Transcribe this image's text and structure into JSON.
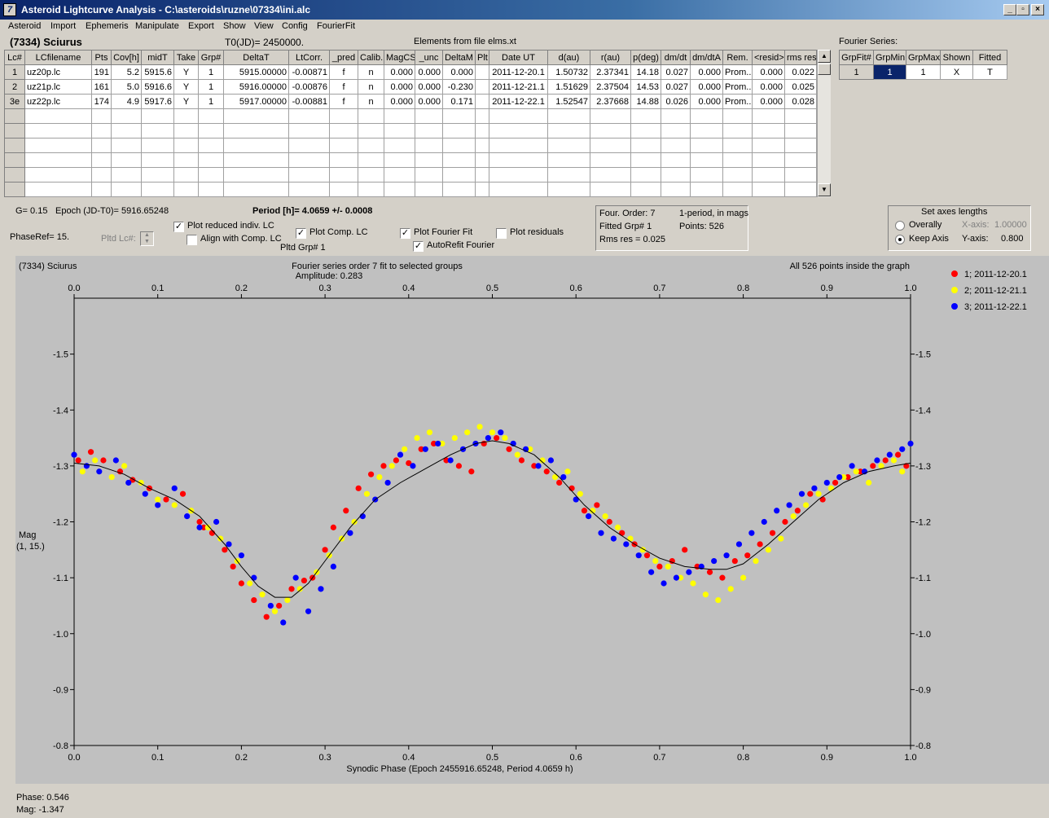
{
  "window": {
    "title": "Asteroid Lightcurve Analysis - C:\\asteroids\\ruzne\\07334\\ini.alc",
    "icon_label": "7",
    "buttons": {
      "minimize": "_",
      "restore": "▫",
      "close": "×"
    }
  },
  "menu": [
    "Asteroid",
    "Import",
    "Ephemeris",
    "Manipulate",
    "Export",
    "Show",
    "View",
    "Config",
    "FourierFit"
  ],
  "header": {
    "asteroid_name": "(7334) Sciurus",
    "t0": "T0(JD)= 2450000.",
    "elements": "Elements from file elms.xt",
    "fourier_series_label": "Fourier Series:"
  },
  "lc_table": {
    "columns": [
      "Lc#",
      "LCfilename",
      "Pts",
      "Cov[h]",
      "midT",
      "Take",
      "Grp#",
      "DeltaT",
      "LtCorr.",
      "_pred",
      "Calib.",
      "MagCS",
      "_unc",
      "DeltaM",
      "Plt",
      "Date UT",
      "d(au)",
      "r(au)",
      "p(deg)",
      "dm/dt",
      "dm/dtA",
      "Rem.",
      "<resid>",
      "rms res"
    ],
    "rows": [
      [
        "1",
        "uz20p.lc",
        "191",
        "5.2",
        "5915.6",
        "Y",
        "1",
        "5915.00000",
        "-0.00871",
        "f",
        "n",
        "0.000",
        "0.000",
        "0.000",
        "",
        "2011-12-20.1",
        "1.50732",
        "2.37341",
        "14.18",
        "0.027",
        "0.000",
        "Prom...",
        "0.000",
        "0.022"
      ],
      [
        "2",
        "uz21p.lc",
        "161",
        "5.0",
        "5916.6",
        "Y",
        "1",
        "5916.00000",
        "-0.00876",
        "f",
        "n",
        "0.000",
        "0.000",
        "-0.230",
        "",
        "2011-12-21.1",
        "1.51629",
        "2.37504",
        "14.53",
        "0.027",
        "0.000",
        "Prom...",
        "0.000",
        "0.025"
      ],
      [
        "3e",
        "uz22p.lc",
        "174",
        "4.9",
        "5917.6",
        "Y",
        "1",
        "5917.00000",
        "-0.00881",
        "f",
        "n",
        "0.000",
        "0.000",
        "0.171",
        "",
        "2011-12-22.1",
        "1.52547",
        "2.37668",
        "14.88",
        "0.026",
        "0.000",
        "Prom...",
        "0.000",
        "0.028"
      ]
    ],
    "empty_rows": 6
  },
  "fourier_table": {
    "columns": [
      "GrpFit#",
      "GrpMin",
      "GrpMax",
      "Shown",
      "Fitted"
    ],
    "row": [
      "1",
      "1",
      "1",
      "X",
      "T"
    ]
  },
  "params": {
    "g": "G= 0.15",
    "epoch": "Epoch (JD-T0)= 5916.65248",
    "period": "Period [h]= 4.0659 +/- 0.0008",
    "phaseref": "PhaseRef= 15.",
    "pltd_lc": "Pltd Lc#:",
    "pltd_grp": "Pltd Grp#  1"
  },
  "checkboxes": {
    "plot_reduced": {
      "label": "Plot reduced indiv. LC",
      "checked": true
    },
    "align_comp": {
      "label": "Align with Comp. LC",
      "checked": false
    },
    "plot_comp": {
      "label": "Plot Comp. LC",
      "checked": true
    },
    "plot_fourier": {
      "label": "Plot Fourier Fit",
      "checked": true
    },
    "plot_residuals": {
      "label": "Plot residuals",
      "checked": false
    },
    "autorefit": {
      "label": "AutoRefit Fourier",
      "checked": true
    }
  },
  "fit_info": {
    "order": "Four. Order:  7",
    "period_mode": "1-period, in mags",
    "fitted_grp": "Fitted Grp# 1",
    "points": "Points: 526",
    "rms": "Rms res     = 0.025"
  },
  "axes_box": {
    "title": "Set axes lengths",
    "overally": "Overally",
    "keep_axis": "Keep Axis",
    "x_axis_label": "X-axis:",
    "x_axis_value": "1.00000",
    "y_axis_label": "Y-axis:",
    "y_axis_value": "0.800",
    "selected": "keep_axis"
  },
  "status": {
    "phase": "Phase:  0.546",
    "mag": "Mag:    -1.347"
  },
  "colors": {
    "series1": "#ff0000",
    "series2": "#ffff00",
    "series3": "#0000ff",
    "plot_bg": "#c0c0c0"
  },
  "chart_data": {
    "type": "scatter",
    "title": "Fourier series order 7 fit to selected groups",
    "subtitle": "Amplitude: 0.283",
    "top_left_label": "(7334) Sciurus",
    "top_right_label": "All 526 points inside the graph",
    "xlabel": "Synodic Phase (Epoch 2455916.65248, Period 4.0659 h)",
    "ylabel": "Mag",
    "ylabel2": "(1, 15.)",
    "xlim": [
      0.0,
      1.0
    ],
    "ylim": [
      -1.6,
      -0.8
    ],
    "y_inverted": true,
    "x_ticks": [
      "0.0",
      "0.1",
      "0.2",
      "0.3",
      "0.4",
      "0.5",
      "0.6",
      "0.7",
      "0.8",
      "0.9",
      "1.0"
    ],
    "y_ticks": [
      "-1.5",
      "-1.4",
      "-1.3",
      "-1.2",
      "-1.1",
      "-1.0",
      "-0.9",
      "-0.8"
    ],
    "legend_position": "top-right",
    "fit_curve": {
      "x": [
        0.0,
        0.03,
        0.06,
        0.09,
        0.12,
        0.15,
        0.18,
        0.2,
        0.22,
        0.24,
        0.26,
        0.28,
        0.3,
        0.33,
        0.36,
        0.39,
        0.42,
        0.45,
        0.48,
        0.5,
        0.52,
        0.55,
        0.58,
        0.61,
        0.64,
        0.67,
        0.7,
        0.73,
        0.76,
        0.78,
        0.8,
        0.83,
        0.86,
        0.89,
        0.92,
        0.95,
        0.98,
        1.0
      ],
      "y": [
        -1.305,
        -1.3,
        -1.285,
        -1.26,
        -1.24,
        -1.21,
        -1.16,
        -1.12,
        -1.085,
        -1.065,
        -1.065,
        -1.09,
        -1.13,
        -1.19,
        -1.24,
        -1.27,
        -1.295,
        -1.32,
        -1.34,
        -1.345,
        -1.34,
        -1.32,
        -1.28,
        -1.23,
        -1.19,
        -1.16,
        -1.135,
        -1.12,
        -1.115,
        -1.115,
        -1.125,
        -1.16,
        -1.2,
        -1.24,
        -1.27,
        -1.29,
        -1.3,
        -1.305
      ]
    },
    "series": [
      {
        "name": "1; 2011-12-20.1",
        "color": "#ff0000",
        "x": [
          0.005,
          0.02,
          0.035,
          0.055,
          0.07,
          0.09,
          0.11,
          0.13,
          0.15,
          0.155,
          0.165,
          0.18,
          0.19,
          0.2,
          0.215,
          0.23,
          0.245,
          0.26,
          0.275,
          0.285,
          0.3,
          0.31,
          0.325,
          0.34,
          0.355,
          0.37,
          0.385,
          0.4,
          0.415,
          0.43,
          0.445,
          0.46,
          0.475,
          0.49,
          0.505,
          0.52,
          0.535,
          0.55,
          0.565,
          0.58,
          0.595,
          0.61,
          0.625,
          0.64,
          0.655,
          0.67,
          0.685,
          0.7,
          0.715,
          0.73,
          0.745,
          0.76,
          0.775,
          0.79,
          0.805,
          0.82,
          0.835,
          0.85,
          0.865,
          0.88,
          0.895,
          0.91,
          0.925,
          0.94,
          0.955,
          0.97,
          0.985,
          0.995
        ],
        "y": [
          -1.31,
          -1.325,
          -1.31,
          -1.29,
          -1.275,
          -1.26,
          -1.24,
          -1.25,
          -1.2,
          -1.19,
          -1.18,
          -1.15,
          -1.12,
          -1.09,
          -1.06,
          -1.03,
          -1.05,
          -1.08,
          -1.095,
          -1.1,
          -1.15,
          -1.19,
          -1.22,
          -1.26,
          -1.285,
          -1.3,
          -1.31,
          -1.305,
          -1.33,
          -1.34,
          -1.31,
          -1.3,
          -1.29,
          -1.34,
          -1.35,
          -1.33,
          -1.31,
          -1.3,
          -1.29,
          -1.27,
          -1.26,
          -1.22,
          -1.23,
          -1.2,
          -1.18,
          -1.16,
          -1.14,
          -1.12,
          -1.13,
          -1.15,
          -1.12,
          -1.11,
          -1.1,
          -1.13,
          -1.14,
          -1.16,
          -1.18,
          -1.2,
          -1.22,
          -1.25,
          -1.24,
          -1.27,
          -1.28,
          -1.29,
          -1.3,
          -1.31,
          -1.32,
          -1.3
        ]
      },
      {
        "name": "2; 2011-12-21.1",
        "color": "#ffff00",
        "x": [
          0.01,
          0.025,
          0.045,
          0.06,
          0.08,
          0.1,
          0.12,
          0.14,
          0.16,
          0.175,
          0.195,
          0.21,
          0.225,
          0.24,
          0.255,
          0.27,
          0.29,
          0.305,
          0.32,
          0.335,
          0.35,
          0.365,
          0.38,
          0.395,
          0.41,
          0.425,
          0.44,
          0.455,
          0.47,
          0.485,
          0.5,
          0.515,
          0.53,
          0.545,
          0.56,
          0.575,
          0.59,
          0.605,
          0.62,
          0.635,
          0.65,
          0.665,
          0.68,
          0.695,
          0.71,
          0.725,
          0.74,
          0.755,
          0.77,
          0.785,
          0.8,
          0.815,
          0.83,
          0.845,
          0.86,
          0.875,
          0.89,
          0.905,
          0.92,
          0.935,
          0.95,
          0.965,
          0.98,
          0.99
        ],
        "y": [
          -1.29,
          -1.31,
          -1.28,
          -1.3,
          -1.27,
          -1.24,
          -1.23,
          -1.22,
          -1.19,
          -1.17,
          -1.13,
          -1.09,
          -1.07,
          -1.04,
          -1.06,
          -1.08,
          -1.11,
          -1.14,
          -1.17,
          -1.2,
          -1.25,
          -1.28,
          -1.3,
          -1.33,
          -1.35,
          -1.36,
          -1.34,
          -1.35,
          -1.36,
          -1.37,
          -1.36,
          -1.35,
          -1.32,
          -1.33,
          -1.31,
          -1.28,
          -1.29,
          -1.25,
          -1.22,
          -1.21,
          -1.19,
          -1.17,
          -1.15,
          -1.13,
          -1.12,
          -1.1,
          -1.09,
          -1.07,
          -1.06,
          -1.08,
          -1.1,
          -1.13,
          -1.15,
          -1.17,
          -1.21,
          -1.23,
          -1.25,
          -1.26,
          -1.28,
          -1.29,
          -1.27,
          -1.3,
          -1.31,
          -1.29
        ]
      },
      {
        "name": "3; 2011-12-22.1",
        "color": "#0000ff",
        "x": [
          0.0,
          0.015,
          0.03,
          0.05,
          0.065,
          0.085,
          0.1,
          0.12,
          0.135,
          0.15,
          0.17,
          0.185,
          0.2,
          0.215,
          0.235,
          0.25,
          0.265,
          0.28,
          0.295,
          0.31,
          0.33,
          0.345,
          0.36,
          0.375,
          0.39,
          0.405,
          0.42,
          0.435,
          0.45,
          0.465,
          0.48,
          0.495,
          0.51,
          0.525,
          0.54,
          0.555,
          0.57,
          0.585,
          0.6,
          0.615,
          0.63,
          0.645,
          0.66,
          0.675,
          0.69,
          0.705,
          0.72,
          0.735,
          0.75,
          0.765,
          0.78,
          0.795,
          0.81,
          0.825,
          0.84,
          0.855,
          0.87,
          0.885,
          0.9,
          0.915,
          0.93,
          0.945,
          0.96,
          0.975,
          0.99,
          1.0
        ],
        "y": [
          -1.32,
          -1.3,
          -1.29,
          -1.31,
          -1.27,
          -1.25,
          -1.23,
          -1.26,
          -1.21,
          -1.19,
          -1.2,
          -1.16,
          -1.14,
          -1.1,
          -1.05,
          -1.02,
          -1.1,
          -1.04,
          -1.08,
          -1.12,
          -1.18,
          -1.21,
          -1.24,
          -1.27,
          -1.32,
          -1.3,
          -1.33,
          -1.34,
          -1.31,
          -1.33,
          -1.34,
          -1.35,
          -1.36,
          -1.34,
          -1.33,
          -1.3,
          -1.31,
          -1.28,
          -1.24,
          -1.21,
          -1.18,
          -1.17,
          -1.16,
          -1.14,
          -1.11,
          -1.09,
          -1.1,
          -1.11,
          -1.12,
          -1.13,
          -1.14,
          -1.16,
          -1.18,
          -1.2,
          -1.22,
          -1.23,
          -1.25,
          -1.26,
          -1.27,
          -1.28,
          -1.3,
          -1.29,
          -1.31,
          -1.32,
          -1.33,
          -1.34
        ]
      }
    ]
  }
}
